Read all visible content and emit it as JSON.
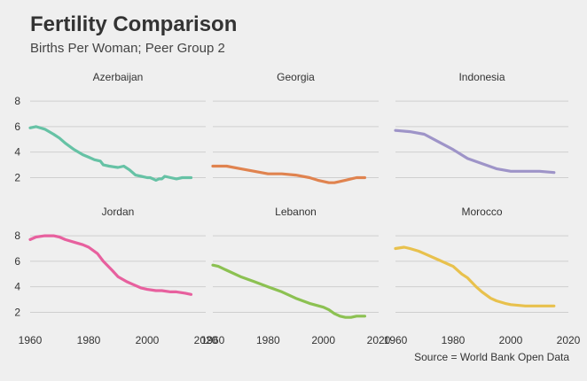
{
  "title": "Fertility Comparison",
  "subtitle": "Births Per Woman; Peer Group 2",
  "caption": "Source = World Bank Open Data",
  "chart_data": {
    "type": "line",
    "facet": "wrap",
    "ncol": 3,
    "grid": "horizontal",
    "legend": "none",
    "xlim": [
      1960,
      2020
    ],
    "ylim": [
      1.2,
      8.7
    ],
    "x_ticks": [
      1960,
      1980,
      2000,
      2020
    ],
    "y_ticks": [
      2,
      4,
      6,
      8
    ],
    "panels": [
      {
        "name": "Azerbaijan",
        "color": "#66c2a5",
        "x": [
          1960,
          1962,
          1965,
          1968,
          1970,
          1972,
          1975,
          1978,
          1980,
          1982,
          1984,
          1985,
          1987,
          1990,
          1992,
          1994,
          1996,
          1998,
          2000,
          2001,
          2002,
          2003,
          2004,
          2005,
          2006,
          2008,
          2010,
          2012,
          2014,
          2015
        ],
        "y": [
          5.9,
          6.0,
          5.8,
          5.4,
          5.1,
          4.7,
          4.2,
          3.8,
          3.6,
          3.4,
          3.3,
          3.0,
          2.9,
          2.8,
          2.9,
          2.6,
          2.2,
          2.1,
          2.0,
          2.0,
          1.9,
          1.8,
          1.9,
          1.9,
          2.1,
          2.0,
          1.9,
          2.0,
          2.0,
          2.0
        ]
      },
      {
        "name": "Georgia",
        "color": "#e0834f",
        "x": [
          1960,
          1965,
          1970,
          1975,
          1980,
          1985,
          1990,
          1995,
          1998,
          2000,
          2002,
          2004,
          2006,
          2008,
          2010,
          2012,
          2014,
          2015
        ],
        "y": [
          2.9,
          2.9,
          2.7,
          2.5,
          2.3,
          2.3,
          2.2,
          2.0,
          1.8,
          1.7,
          1.6,
          1.6,
          1.7,
          1.8,
          1.9,
          2.0,
          2.0,
          2.0
        ]
      },
      {
        "name": "Indonesia",
        "color": "#9e94c8",
        "x": [
          1960,
          1965,
          1970,
          1975,
          1980,
          1985,
          1990,
          1995,
          2000,
          2005,
          2010,
          2015
        ],
        "y": [
          5.7,
          5.6,
          5.4,
          4.8,
          4.2,
          3.5,
          3.1,
          2.7,
          2.5,
          2.5,
          2.5,
          2.4
        ]
      },
      {
        "name": "Jordan",
        "color": "#e7609e",
        "x": [
          1960,
          1962,
          1965,
          1968,
          1970,
          1972,
          1975,
          1978,
          1980,
          1983,
          1985,
          1988,
          1990,
          1993,
          1995,
          1998,
          2000,
          2003,
          2005,
          2008,
          2010,
          2013,
          2015
        ],
        "y": [
          7.7,
          7.9,
          8.0,
          8.0,
          7.9,
          7.7,
          7.5,
          7.3,
          7.1,
          6.6,
          6.0,
          5.3,
          4.8,
          4.4,
          4.2,
          3.9,
          3.8,
          3.7,
          3.7,
          3.6,
          3.6,
          3.5,
          3.4
        ]
      },
      {
        "name": "Lebanon",
        "color": "#8cc152",
        "x": [
          1960,
          1962,
          1965,
          1970,
          1975,
          1980,
          1985,
          1990,
          1995,
          2000,
          2002,
          2004,
          2006,
          2008,
          2010,
          2012,
          2014,
          2015
        ],
        "y": [
          5.7,
          5.6,
          5.3,
          4.8,
          4.4,
          4.0,
          3.6,
          3.1,
          2.7,
          2.4,
          2.2,
          1.9,
          1.7,
          1.6,
          1.6,
          1.7,
          1.7,
          1.7
        ]
      },
      {
        "name": "Morocco",
        "color": "#e8c14d",
        "x": [
          1960,
          1963,
          1965,
          1968,
          1970,
          1975,
          1980,
          1983,
          1985,
          1988,
          1990,
          1993,
          1995,
          1998,
          2000,
          2005,
          2010,
          2015
        ],
        "y": [
          7.0,
          7.1,
          7.0,
          6.8,
          6.6,
          6.1,
          5.6,
          5.0,
          4.7,
          4.0,
          3.6,
          3.1,
          2.9,
          2.7,
          2.6,
          2.5,
          2.5,
          2.5
        ]
      }
    ]
  }
}
